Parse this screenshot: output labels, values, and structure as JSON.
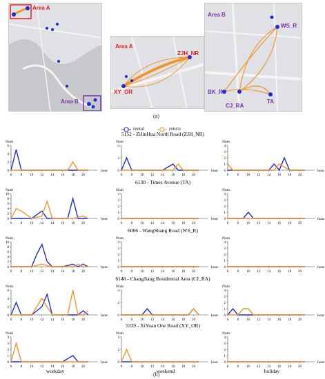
{
  "figure": {
    "label_a": "(a)",
    "label_b": "(b)",
    "legend": {
      "rental": "rental",
      "return": "return"
    },
    "colors": {
      "rental": "#1f2bd6",
      "return": "#f2952a"
    },
    "x_axis_unit": "hour",
    "y_axis_unit": "Num",
    "columns": [
      "workday",
      "weekend",
      "holiday"
    ]
  },
  "maps": {
    "overview": {
      "area_a": "Area A",
      "area_b": "Area B"
    },
    "area_a": {
      "title": "Area A",
      "stations": [
        "ZJH_NR",
        "XY_OR"
      ]
    },
    "area_b": {
      "title": "Area B",
      "stations": [
        "WS_R",
        "BK_R",
        "CJ_RA",
        "TA"
      ]
    }
  },
  "chart_data": {
    "type": "line",
    "x_ticks": [
      6,
      8,
      10,
      12,
      14,
      16,
      18,
      20
    ],
    "xlim": [
      6,
      21
    ],
    "rows": [
      {
        "title": "5152 - ZiJinHua North Road (ZJH_NR)",
        "panels": [
          {
            "ylim": [
              0,
              6
            ],
            "yticks": [
              0,
              2,
              4,
              6
            ],
            "series": [
              {
                "name": "rental",
                "x": [
                  6,
                  7,
                  8,
                  10,
                  12,
                  14,
                  16,
                  18,
                  19,
                  21
                ],
                "y": [
                  0,
                  5,
                  0,
                  0,
                  0,
                  0,
                  0,
                  0,
                  0,
                  0
                ]
              },
              {
                "name": "return",
                "x": [
                  6,
                  8,
                  10,
                  12,
                  14,
                  16,
                  17,
                  18,
                  19,
                  21
                ],
                "y": [
                  0,
                  0,
                  0,
                  0,
                  0,
                  0,
                  0,
                  2,
                  0,
                  0
                ]
              }
            ]
          },
          {
            "ylim": [
              0,
              4
            ],
            "yticks": [
              0,
              2,
              4
            ],
            "series": [
              {
                "name": "rental",
                "x": [
                  6,
                  7,
                  8,
                  10,
                  12,
                  14,
                  16,
                  17,
                  18,
                  21
                ],
                "y": [
                  0,
                  2,
                  0,
                  0,
                  0,
                  0,
                  1,
                  0,
                  0,
                  0
                ]
              },
              {
                "name": "return",
                "x": [
                  6,
                  8,
                  10,
                  12,
                  14,
                  16,
                  17,
                  18,
                  19,
                  21
                ],
                "y": [
                  0,
                  0,
                  0,
                  0,
                  0,
                  0,
                  1,
                  0,
                  0,
                  0
                ]
              }
            ]
          },
          {
            "ylim": [
              0,
              4
            ],
            "yticks": [
              0,
              1,
              2,
              3,
              4
            ],
            "series": [
              {
                "name": "rental",
                "x": [
                  6,
                  8,
                  10,
                  12,
                  14,
                  15,
                  16,
                  17,
                  18,
                  21
                ],
                "y": [
                  0,
                  0,
                  0,
                  0,
                  0,
                  1,
                  0,
                  2,
                  0,
                  0
                ]
              },
              {
                "name": "return",
                "x": [
                  6,
                  7,
                  8,
                  10,
                  12,
                  14,
                  15,
                  16,
                  18,
                  21
                ],
                "y": [
                  1,
                  0,
                  0,
                  0,
                  0,
                  0,
                  0,
                  1,
                  0,
                  0
                ]
              }
            ]
          }
        ]
      },
      {
        "title": "6130 - Times Avenue (TA)",
        "panels": [
          {
            "ylim": [
              0,
              10
            ],
            "yticks": [
              0,
              2,
              4,
              6,
              8,
              10
            ],
            "series": [
              {
                "name": "rental",
                "x": [
                  6,
                  8,
                  10,
                  12,
                  13,
                  14,
                  16,
                  17,
                  18,
                  19,
                  20,
                  21
                ],
                "y": [
                  0,
                  0,
                  0,
                  3,
                  0,
                  0,
                  0,
                  0,
                  8,
                  0,
                  0,
                  0
                ]
              },
              {
                "name": "return",
                "x": [
                  6,
                  7,
                  8,
                  10,
                  12,
                  13,
                  14,
                  16,
                  18,
                  20,
                  21
                ],
                "y": [
                  0,
                  4,
                  3,
                  0,
                  1,
                  7,
                  0,
                  0,
                  0,
                  1,
                  0
                ]
              }
            ]
          },
          {
            "ylim": [
              0,
              4
            ],
            "yticks": [
              0,
              1,
              2,
              3,
              4
            ],
            "series": [
              {
                "name": "rental",
                "x": [
                  6,
                  21
                ],
                "y": [
                  0,
                  0
                ]
              },
              {
                "name": "return",
                "x": [
                  6,
                  21
                ],
                "y": [
                  0,
                  0
                ]
              }
            ]
          },
          {
            "ylim": [
              0,
              4
            ],
            "yticks": [
              0,
              1,
              2,
              3,
              4
            ],
            "series": [
              {
                "name": "rental",
                "x": [
                  6,
                  9,
                  10,
                  11,
                  21
                ],
                "y": [
                  0,
                  0,
                  1,
                  0,
                  0
                ]
              },
              {
                "name": "return",
                "x": [
                  6,
                  21
                ],
                "y": [
                  0,
                  0
                ]
              }
            ]
          }
        ]
      },
      {
        "title": "6006 - WangShang Road (WS_R)",
        "panels": [
          {
            "ylim": [
              0,
              10
            ],
            "yticks": [
              0,
              2,
              4,
              6,
              8,
              10
            ],
            "series": [
              {
                "name": "rental",
                "x": [
                  6,
                  8,
                  10,
                  11,
                  12,
                  13,
                  14,
                  16,
                  18,
                  19,
                  20,
                  21
                ],
                "y": [
                  0,
                  0,
                  0,
                  5,
                  9,
                  2,
                  0,
                  0,
                  1,
                  0,
                  1,
                  0
                ]
              },
              {
                "name": "return",
                "x": [
                  6,
                  8,
                  10,
                  12,
                  14,
                  16,
                  18,
                  19,
                  20,
                  21
                ],
                "y": [
                  0,
                  0,
                  0,
                  1,
                  0,
                  0,
                  0,
                  1,
                  0,
                  0
                ]
              }
            ]
          },
          {
            "ylim": [
              0,
              4
            ],
            "yticks": [
              0,
              1,
              2,
              3,
              4
            ],
            "series": [
              {
                "name": "rental",
                "x": [
                  6,
                  21
                ],
                "y": [
                  0,
                  0
                ]
              },
              {
                "name": "return",
                "x": [
                  6,
                  21
                ],
                "y": [
                  0,
                  0
                ]
              }
            ]
          },
          {
            "ylim": [
              0,
              4
            ],
            "yticks": [
              0,
              1,
              2,
              3,
              4
            ],
            "series": [
              {
                "name": "rental",
                "x": [
                  6,
                  21
                ],
                "y": [
                  0,
                  0
                ]
              },
              {
                "name": "return",
                "x": [
                  6,
                  21
                ],
                "y": [
                  0,
                  0
                ]
              }
            ]
          }
        ]
      },
      {
        "title": "6148 - ChangJiang Residential Area (CJ_RA)",
        "panels": [
          {
            "ylim": [
              0,
              6
            ],
            "yticks": [
              0,
              2,
              4,
              6
            ],
            "series": [
              {
                "name": "rental",
                "x": [
                  6,
                  7,
                  8,
                  10,
                  12,
                  13,
                  14,
                  16,
                  18,
                  19,
                  20,
                  21
                ],
                "y": [
                  0,
                  3,
                  0,
                  0,
                  2,
                  5,
                  0,
                  0,
                  0,
                  0,
                  1,
                  0
                ]
              },
              {
                "name": "return",
                "x": [
                  6,
                  8,
                  10,
                  11,
                  12,
                  14,
                  16,
                  17,
                  18,
                  19,
                  20,
                  21
                ],
                "y": [
                  0,
                  0,
                  0,
                  2,
                  4,
                  0,
                  0,
                  0,
                  6,
                  0,
                  0,
                  1
                ]
              }
            ]
          },
          {
            "ylim": [
              0,
              4
            ],
            "yticks": [
              0,
              2,
              4
            ],
            "series": [
              {
                "name": "rental",
                "x": [
                  6,
                  10,
                  11,
                  12,
                  19,
                  20,
                  21
                ],
                "y": [
                  0,
                  0,
                  1,
                  0,
                  0,
                  1,
                  0
                ]
              },
              {
                "name": "return",
                "x": [
                  6,
                  19,
                  20,
                  21
                ],
                "y": [
                  0,
                  0,
                  1,
                  0
                ]
              }
            ]
          },
          {
            "ylim": [
              0,
              4
            ],
            "yticks": [
              0,
              1,
              2,
              3,
              4
            ],
            "series": [
              {
                "name": "rental",
                "x": [
                  6,
                  7,
                  8,
                  10,
                  12,
                  21
                ],
                "y": [
                  0,
                  1,
                  0,
                  0,
                  0,
                  0
                ]
              },
              {
                "name": "return",
                "x": [
                  6,
                  8,
                  9,
                  10,
                  11,
                  12,
                  21
                ],
                "y": [
                  0,
                  0,
                  1,
                  1,
                  0,
                  0,
                  0
                ]
              }
            ]
          }
        ]
      },
      {
        "title": "5339 - XiYuan One Road (XY_OR)",
        "panels": [
          {
            "ylim": [
              0,
              4
            ],
            "yticks": [
              0,
              1,
              2,
              3,
              4
            ],
            "series": [
              {
                "name": "rental",
                "x": [
                  6,
                  10,
                  12,
                  14,
                  16,
                  18,
                  19,
                  21
                ],
                "y": [
                  0,
                  0,
                  0,
                  0,
                  0,
                  1,
                  0,
                  0
                ]
              },
              {
                "name": "return",
                "x": [
                  6,
                  7,
                  8,
                  10,
                  12,
                  14,
                  16,
                  18,
                  21
                ],
                "y": [
                  0,
                  3,
                  0,
                  0,
                  0,
                  0,
                  0,
                  0,
                  0
                ]
              }
            ]
          },
          {
            "ylim": [
              0,
              4
            ],
            "yticks": [
              0,
              2,
              4
            ],
            "series": [
              {
                "name": "rental",
                "x": [
                  6,
                  8,
                  21
                ],
                "y": [
                  0,
                  0,
                  0
                ]
              },
              {
                "name": "return",
                "x": [
                  6,
                  7,
                  8,
                  21
                ],
                "y": [
                  0,
                  2,
                  0,
                  0
                ]
              }
            ]
          },
          {
            "ylim": [
              0,
              4
            ],
            "yticks": [
              0,
              1,
              2,
              3,
              4
            ],
            "series": [
              {
                "name": "rental",
                "x": [
                  6,
                  21
                ],
                "y": [
                  0,
                  0
                ]
              },
              {
                "name": "return",
                "x": [
                  6,
                  21
                ],
                "y": [
                  0,
                  0
                ]
              }
            ]
          }
        ]
      }
    ]
  }
}
